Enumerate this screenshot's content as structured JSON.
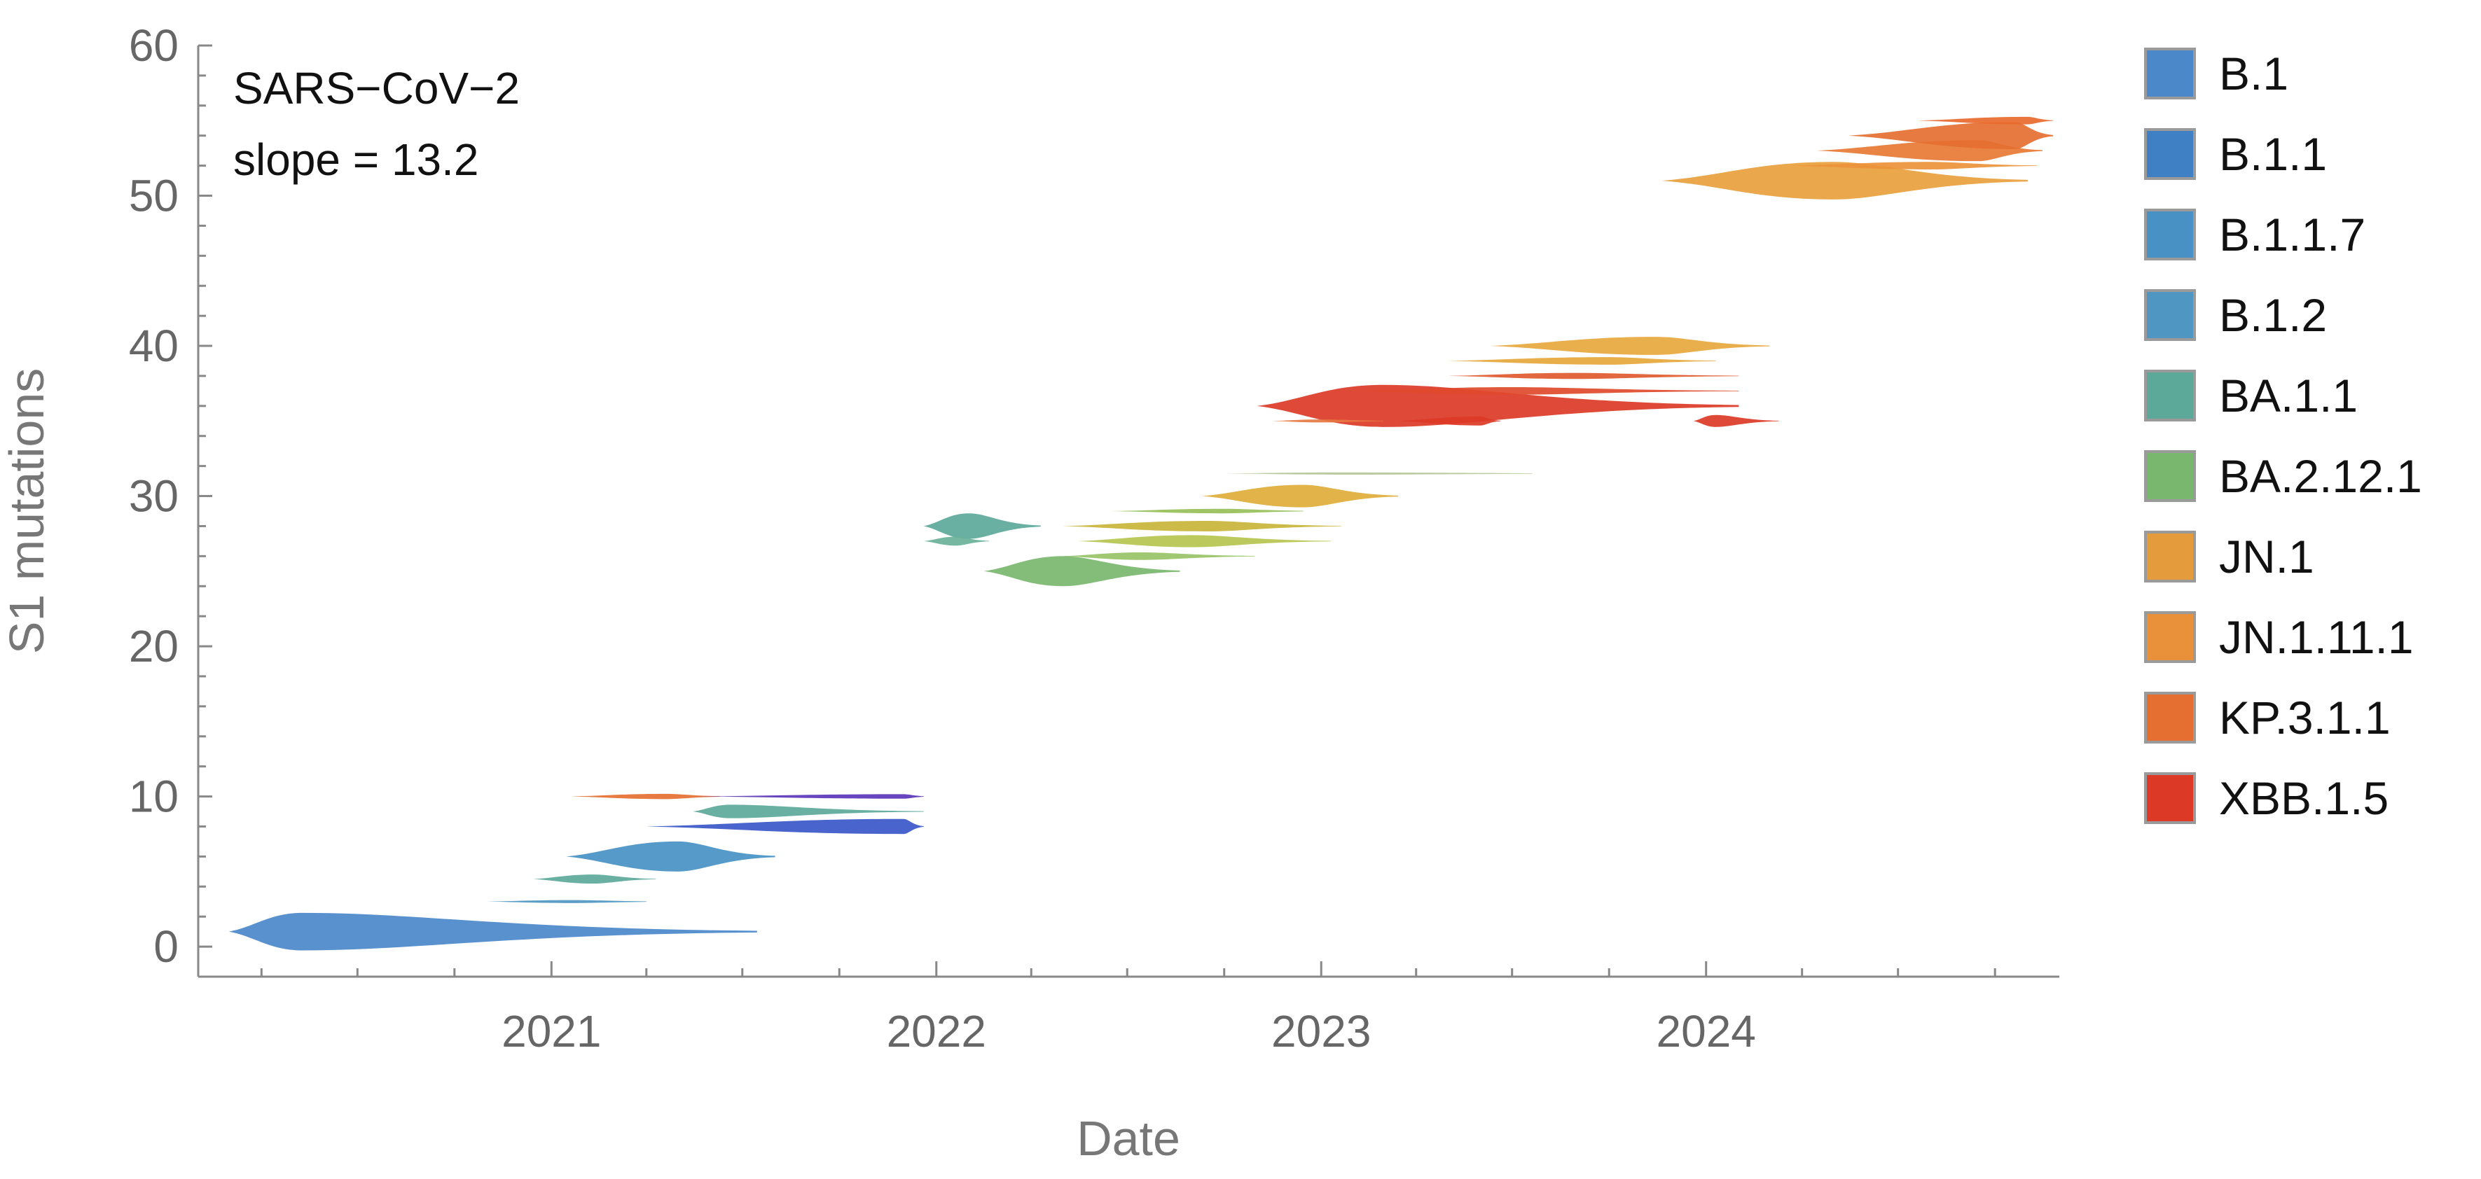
{
  "chart_data": {
    "type": "scatter",
    "title": "",
    "xlabel": "Date",
    "ylabel": "S1 mutations",
    "xlim": [
      "2020-02-01",
      "2024-12-01"
    ],
    "ylim": [
      -2,
      60
    ],
    "x_ticks": [
      "2021",
      "2022",
      "2023",
      "2024"
    ],
    "y_ticks": [
      0,
      10,
      20,
      30,
      40,
      50,
      60
    ],
    "grid": false,
    "legend_position": "right",
    "annotations": {
      "line1": "SARS−CoV−2",
      "line2": "slope = 13.2"
    },
    "legend": [
      {
        "label": "B.1",
        "color": "#4a88c9"
      },
      {
        "label": "B.1.1",
        "color": "#3f7fc4"
      },
      {
        "label": "B.1.1.7",
        "color": "#4791c4"
      },
      {
        "label": "B.1.2",
        "color": "#4f96c2"
      },
      {
        "label": "BA.1.1",
        "color": "#5ca99a"
      },
      {
        "label": "BA.2.12.1",
        "color": "#7ab76e"
      },
      {
        "label": "JN.1",
        "color": "#e49b3c"
      },
      {
        "label": "JN.1.11.1",
        "color": "#e8913a"
      },
      {
        "label": "KP.3.1.1",
        "color": "#e56f30"
      },
      {
        "label": "XBB.1.5",
        "color": "#dc3a26"
      }
    ],
    "series": [
      {
        "x_start": "2020-03-01",
        "x_peak": "2020-05-10",
        "x_end": "2021-07-15",
        "y": 1,
        "width": 2.5,
        "color": "#4a88c9"
      },
      {
        "x_start": "2020-11-01",
        "x_peak": "2021-01-20",
        "x_end": "2021-04-01",
        "y": 3,
        "width": 0.2,
        "color": "#4f96c2"
      },
      {
        "x_start": "2020-12-15",
        "x_peak": "2021-02-10",
        "x_end": "2021-04-10",
        "y": 4.5,
        "width": 0.6,
        "color": "#5ca99a"
      },
      {
        "x_start": "2021-01-15",
        "x_peak": "2021-05-01",
        "x_end": "2021-08-01",
        "y": 6,
        "width": 2.0,
        "color": "#4791c4"
      },
      {
        "x_start": "2021-04-01",
        "x_peak": "2021-12-01",
        "x_end": "2021-12-20",
        "y": 8,
        "width": 1.0,
        "color": "#3a57c8"
      },
      {
        "x_start": "2021-05-15",
        "x_peak": "2021-06-20",
        "x_end": "2021-12-20",
        "y": 9,
        "width": 0.9,
        "color": "#5ca99a"
      },
      {
        "x_start": "2021-01-20",
        "x_peak": "2021-04-20",
        "x_end": "2021-06-10",
        "y": 10,
        "width": 0.35,
        "color": "#e56f30"
      },
      {
        "x_start": "2021-05-20",
        "x_peak": "2021-12-01",
        "x_end": "2021-12-20",
        "y": 10,
        "width": 0.3,
        "color": "#5a35b8"
      },
      {
        "x_start": "2021-12-20",
        "x_peak": "2022-02-01",
        "x_end": "2022-04-10",
        "y": 28,
        "width": 1.7,
        "color": "#5ca99a"
      },
      {
        "x_start": "2021-12-20",
        "x_peak": "2022-01-20",
        "x_end": "2022-02-20",
        "y": 27,
        "width": 0.6,
        "color": "#6ab19a"
      },
      {
        "x_start": "2022-02-15",
        "x_peak": "2022-05-01",
        "x_end": "2022-08-20",
        "y": 25,
        "width": 2.0,
        "color": "#7ab76e"
      },
      {
        "x_start": "2022-05-01",
        "x_peak": "2022-07-15",
        "x_end": "2022-10-30",
        "y": 26,
        "width": 0.5,
        "color": "#98c266"
      },
      {
        "x_start": "2022-05-15",
        "x_peak": "2022-09-01",
        "x_end": "2023-01-10",
        "y": 27,
        "width": 0.8,
        "color": "#b6c64f"
      },
      {
        "x_start": "2022-05-01",
        "x_peak": "2022-09-15",
        "x_end": "2023-01-20",
        "y": 28,
        "width": 0.7,
        "color": "#c8b43a"
      },
      {
        "x_start": "2022-06-15",
        "x_peak": "2022-10-01",
        "x_end": "2022-12-15",
        "y": 29,
        "width": 0.3,
        "color": "#96bf58"
      },
      {
        "x_start": "2022-09-10",
        "x_peak": "2022-12-15",
        "x_end": "2023-03-15",
        "y": 30,
        "width": 1.5,
        "color": "#dfac3a"
      },
      {
        "x_start": "2022-10-01",
        "x_peak": "2023-01-15",
        "x_end": "2023-07-20",
        "y": 31.5,
        "width": 0.15,
        "color": "#b7c79a"
      },
      {
        "x_start": "2022-11-01",
        "x_peak": "2023-03-01",
        "x_end": "2024-02-01",
        "y": 36,
        "width": 2.8,
        "color": "#dc3a26"
      },
      {
        "x_start": "2022-11-15",
        "x_peak": "2023-01-01",
        "x_end": "2023-03-01",
        "y": 35,
        "width": 0.2,
        "color": "#e67a42"
      },
      {
        "x_start": "2023-03-15",
        "x_peak": "2023-06-01",
        "x_end": "2023-06-20",
        "y": 35,
        "width": 0.6,
        "color": "#dc3a26"
      },
      {
        "x_start": "2023-02-01",
        "x_peak": "2023-07-01",
        "x_end": "2024-02-01",
        "y": 37,
        "width": 0.5,
        "color": "#df4a2c"
      },
      {
        "x_start": "2023-05-01",
        "x_peak": "2023-09-01",
        "x_end": "2024-02-01",
        "y": 38,
        "width": 0.4,
        "color": "#e05a2f"
      },
      {
        "x_start": "2023-05-01",
        "x_peak": "2023-10-01",
        "x_end": "2024-01-10",
        "y": 39,
        "width": 0.5,
        "color": "#e6a73a"
      },
      {
        "x_start": "2023-06-10",
        "x_peak": "2023-11-15",
        "x_end": "2024-03-01",
        "y": 40,
        "width": 1.2,
        "color": "#e8a83e"
      },
      {
        "x_start": "2023-12-20",
        "x_peak": "2024-01-10",
        "x_end": "2024-03-10",
        "y": 35,
        "width": 0.8,
        "color": "#dc3a26"
      },
      {
        "x_start": "2023-11-20",
        "x_peak": "2024-05-01",
        "x_end": "2024-11-01",
        "y": 51,
        "width": 2.5,
        "color": "#e8a03c"
      },
      {
        "x_start": "2024-03-20",
        "x_peak": "2024-08-01",
        "x_end": "2024-11-10",
        "y": 52,
        "width": 0.5,
        "color": "#ec923a"
      },
      {
        "x_start": "2024-04-15",
        "x_peak": "2024-09-15",
        "x_end": "2024-11-15",
        "y": 53,
        "width": 1.4,
        "color": "#e77a34"
      },
      {
        "x_start": "2024-05-15",
        "x_peak": "2024-10-20",
        "x_end": "2024-11-25",
        "y": 54,
        "width": 1.8,
        "color": "#e56f30"
      },
      {
        "x_start": "2024-07-20",
        "x_peak": "2024-11-01",
        "x_end": "2024-11-25",
        "y": 55,
        "width": 0.5,
        "color": "#e86a2e"
      }
    ]
  }
}
